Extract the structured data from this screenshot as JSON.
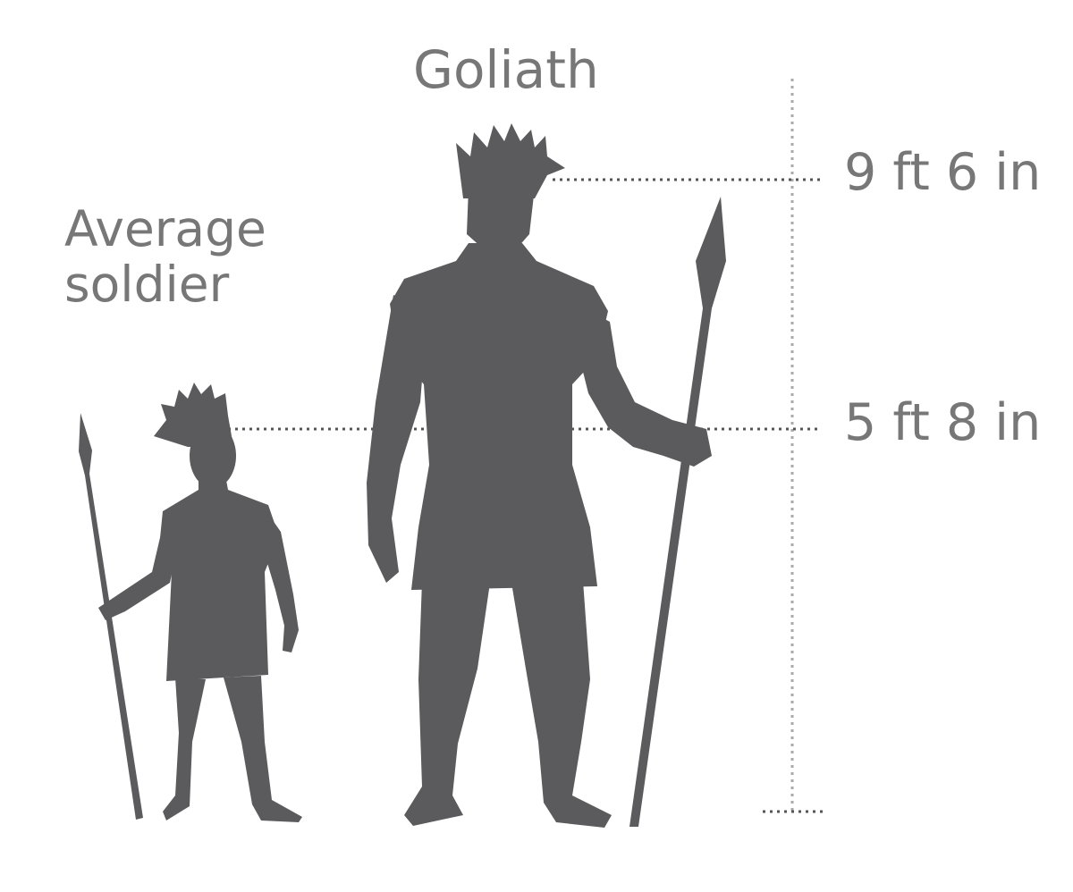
{
  "figures": {
    "soldier": {
      "label": "Average\nsoldier",
      "height_label": "5 ft 8 in"
    },
    "goliath": {
      "label": "Goliath",
      "height_label": "9 ft 6 in"
    }
  },
  "colors": {
    "silhouette": "#5b5b5d",
    "text": "#777777",
    "guides": "#555555"
  }
}
